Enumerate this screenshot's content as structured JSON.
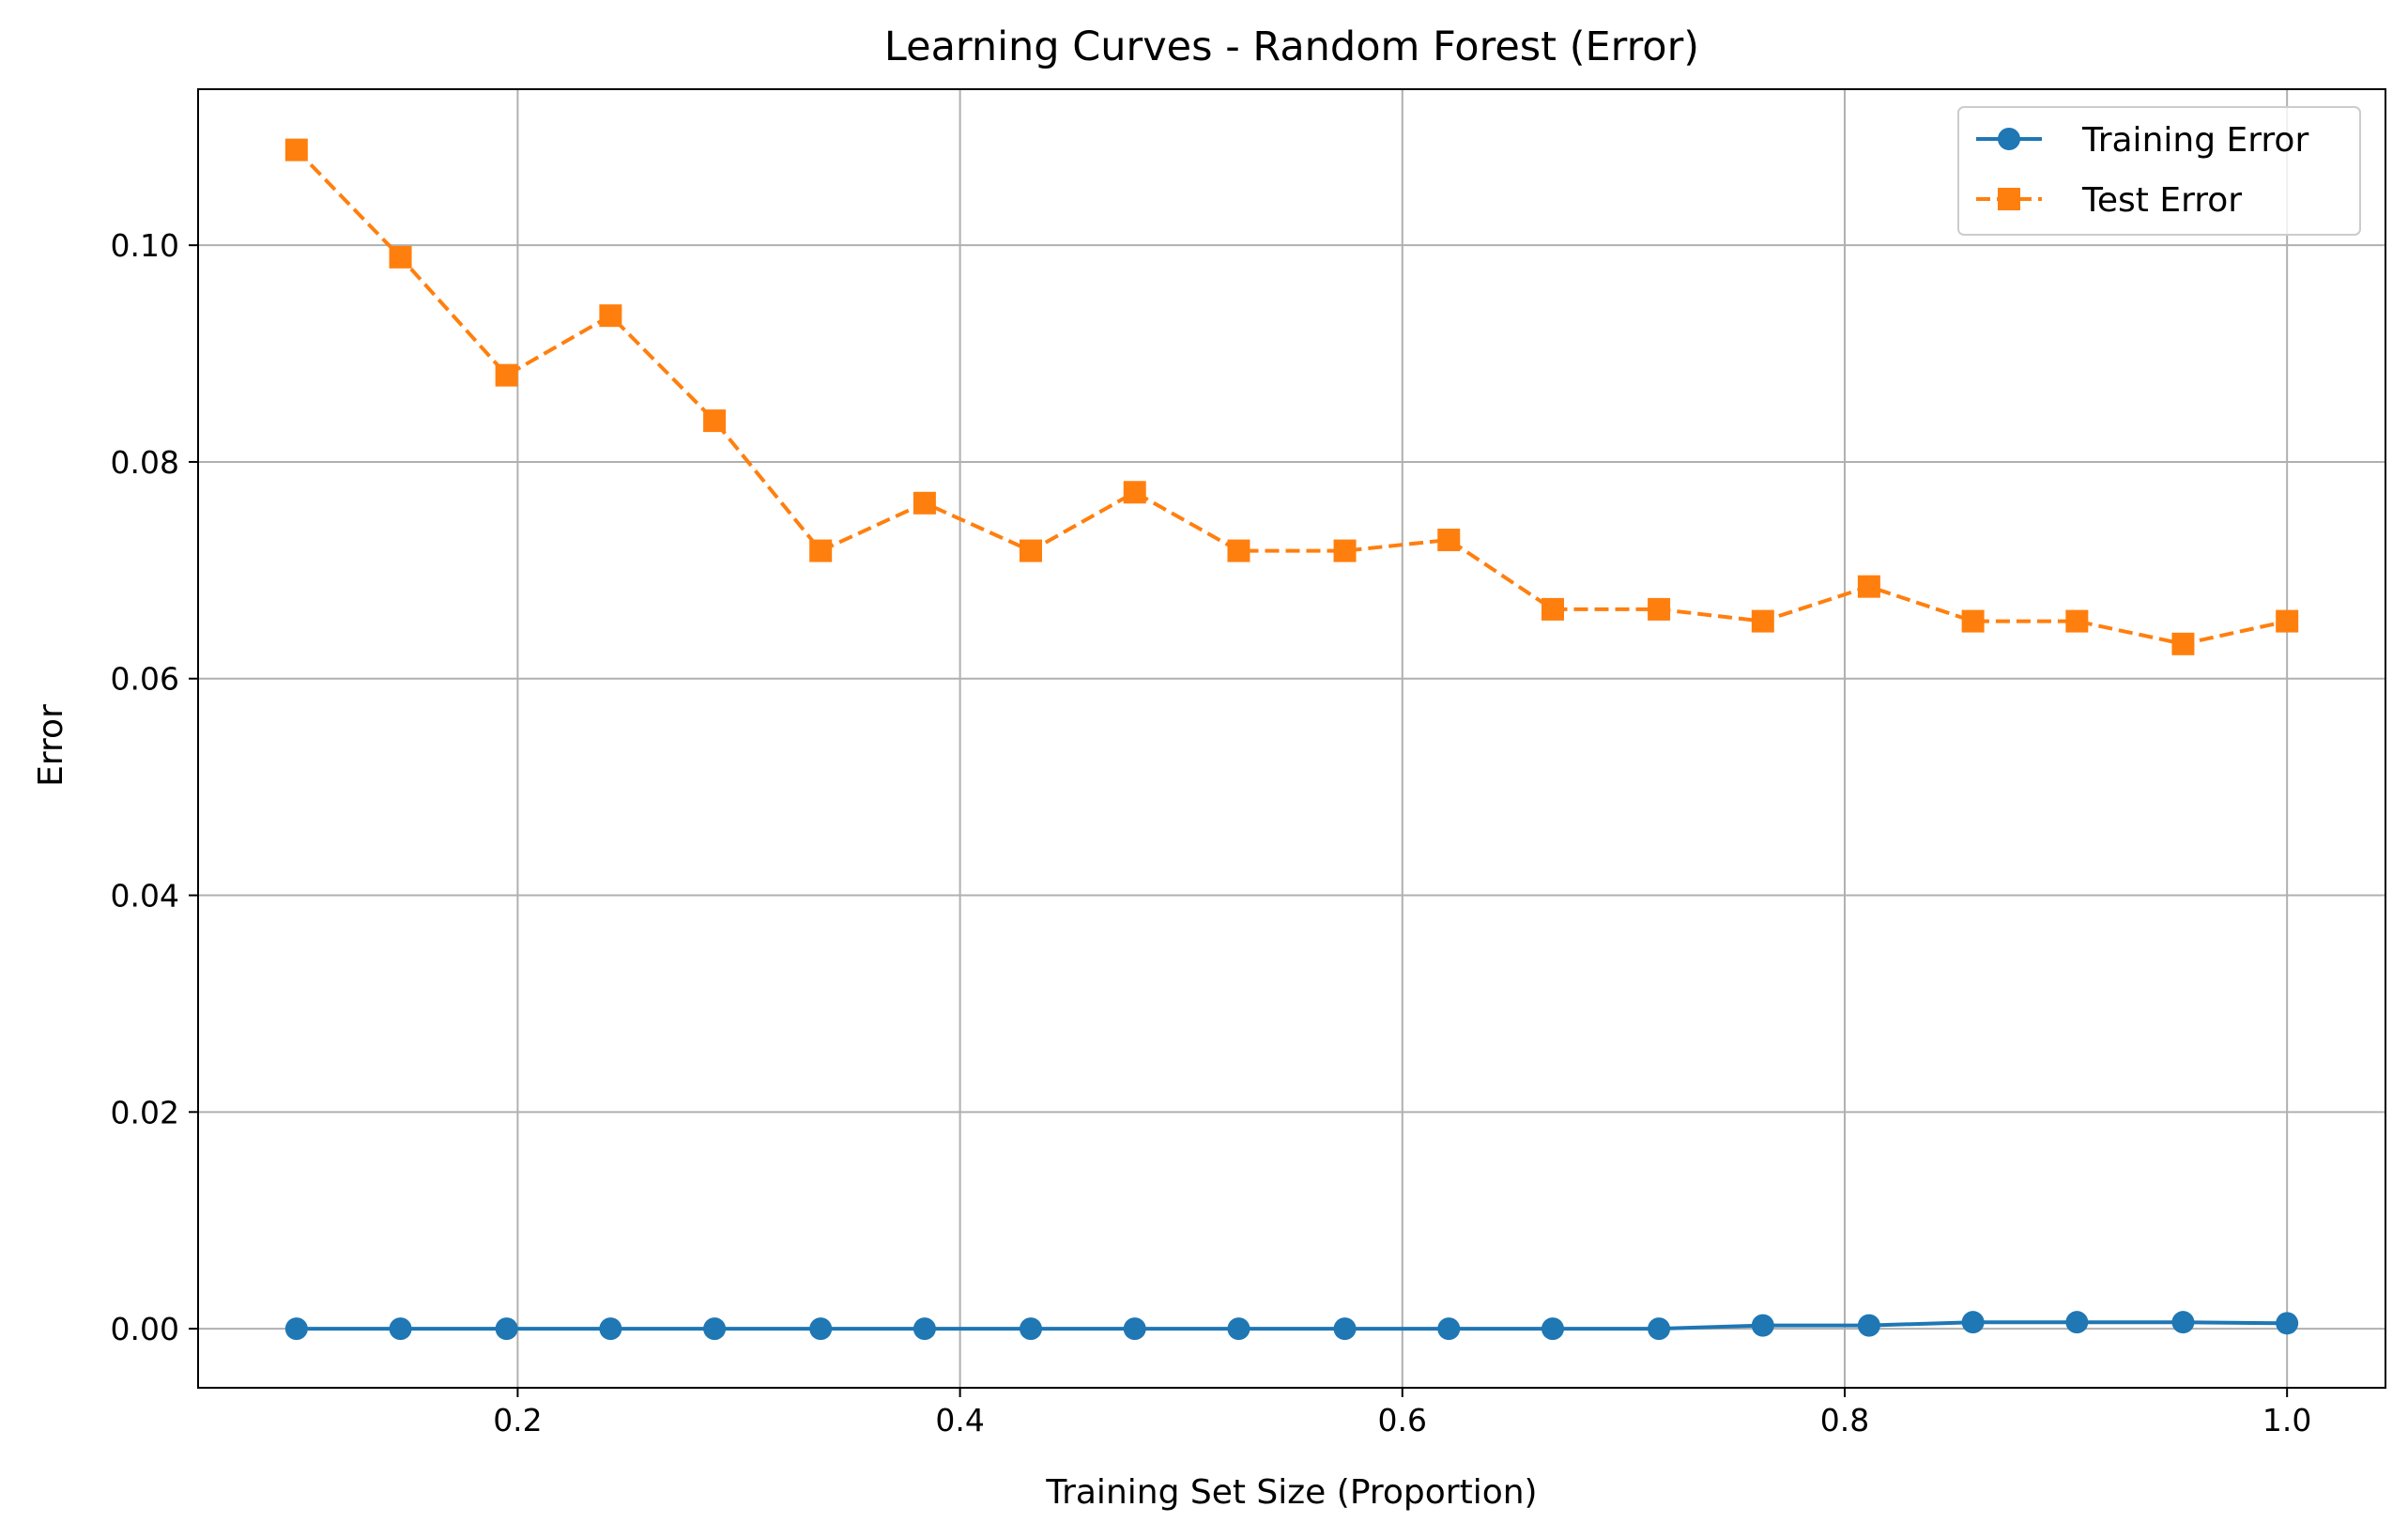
{
  "chart_data": {
    "type": "line",
    "title": "Learning Curves - Random Forest (Error)",
    "xlabel": "Training Set Size (Proportion)",
    "ylabel": "Error",
    "xlim": [
      0.0555,
      1.0445
    ],
    "ylim": [
      -0.00545,
      0.1144
    ],
    "x_ticks": [
      0.2,
      0.4,
      0.6,
      0.8,
      1.0
    ],
    "x_tick_labels": [
      "0.2",
      "0.4",
      "0.6",
      "0.8",
      "1.0"
    ],
    "y_ticks": [
      0.0,
      0.02,
      0.04,
      0.06,
      0.08,
      0.1
    ],
    "y_tick_labels": [
      "0.00",
      "0.02",
      "0.04",
      "0.06",
      "0.08",
      "0.10"
    ],
    "grid": true,
    "legend_position": "top-right",
    "x": [
      0.1,
      0.147,
      0.195,
      0.242,
      0.289,
      0.337,
      0.384,
      0.432,
      0.479,
      0.526,
      0.574,
      0.621,
      0.668,
      0.716,
      0.763,
      0.811,
      0.858,
      0.905,
      0.953,
      1.0
    ],
    "series": [
      {
        "name": "Training Error",
        "color": "#1f77b4",
        "linestyle": "solid",
        "marker": "circle",
        "values": [
          0.0,
          0.0,
          0.0,
          0.0,
          0.0,
          0.0,
          0.0,
          0.0,
          0.0,
          0.0,
          0.0,
          0.0,
          0.0,
          0.0,
          0.0003,
          0.0003,
          0.0006,
          0.0006,
          0.0006,
          0.0005
        ]
      },
      {
        "name": "Test Error",
        "color": "#ff7f0e",
        "linestyle": "dashed",
        "marker": "square",
        "values": [
          0.1088,
          0.0989,
          0.088,
          0.0935,
          0.0838,
          0.0718,
          0.0762,
          0.0718,
          0.0772,
          0.0718,
          0.0718,
          0.0728,
          0.0664,
          0.0664,
          0.0653,
          0.0685,
          0.0653,
          0.0653,
          0.0632,
          0.0653
        ]
      }
    ]
  }
}
